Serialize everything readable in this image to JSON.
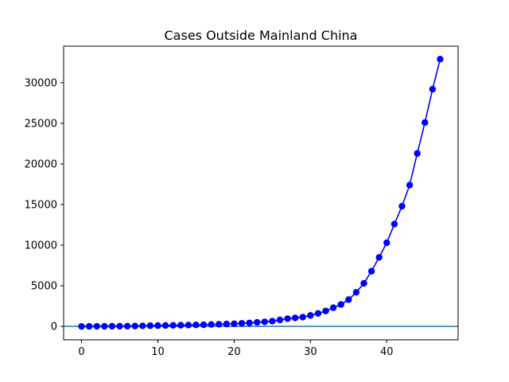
{
  "chart_data": {
    "type": "line",
    "title": "Cases Outside Mainland China",
    "xlabel": "",
    "ylabel": "",
    "xlim": [
      -2.35,
      49.35
    ],
    "ylim": [
      -1650,
      34500
    ],
    "xticks": [
      0,
      10,
      20,
      30,
      40
    ],
    "yticks": [
      0,
      5000,
      10000,
      15000,
      20000,
      25000,
      30000
    ],
    "grid": false,
    "legend": "none",
    "baseline": {
      "y": 0,
      "color": "#1f77b4"
    },
    "series": [
      {
        "color": "#0000ff",
        "marker": "circle",
        "x": [
          0,
          1,
          2,
          3,
          4,
          5,
          6,
          7,
          8,
          9,
          10,
          11,
          12,
          13,
          14,
          15,
          16,
          17,
          18,
          19,
          20,
          21,
          22,
          23,
          24,
          25,
          26,
          27,
          28,
          29,
          30,
          31,
          32,
          33,
          34,
          35,
          36,
          37,
          38,
          39,
          40,
          41,
          42,
          43,
          44,
          45,
          46,
          47
        ],
        "y": [
          0,
          5,
          10,
          15,
          20,
          25,
          35,
          50,
          70,
          90,
          100,
          115,
          130,
          150,
          170,
          190,
          210,
          240,
          270,
          300,
          330,
          380,
          430,
          500,
          560,
          650,
          800,
          950,
          1050,
          1150,
          1350,
          1600,
          1900,
          2300,
          2700,
          3300,
          4200,
          5300,
          6800,
          8500,
          10300,
          12600,
          14800,
          17400,
          21300,
          25100,
          29200,
          32900
        ]
      }
    ]
  }
}
